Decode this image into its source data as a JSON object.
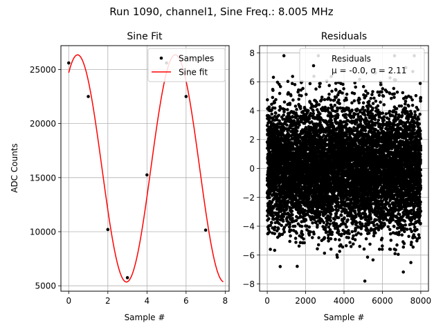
{
  "figure": {
    "suptitle": "Run 1090, channel1, Sine Freq.: 8.005 MHz"
  },
  "chart_data": [
    {
      "type": "line",
      "title": "Sine Fit",
      "xlabel": "Sample #",
      "ylabel": "ADC Counts",
      "xlim": [
        -0.4,
        8.2
      ],
      "ylim": [
        4500,
        27200
      ],
      "xticks": [
        0,
        2,
        4,
        6,
        8
      ],
      "yticks": [
        5000,
        10000,
        15000,
        20000,
        25000
      ],
      "grid": true,
      "legend": {
        "placement": "top-right",
        "entries": [
          "Samples",
          "Sine fit"
        ]
      },
      "series": [
        {
          "name": "Samples",
          "kind": "scatter",
          "color": "#000000",
          "x": [
            0,
            1,
            2,
            3,
            4,
            5,
            6,
            7
          ],
          "y": [
            25600,
            22500,
            10200,
            5750,
            15250,
            25600,
            22500,
            10150
          ]
        },
        {
          "name": "Sine fit",
          "kind": "line",
          "color": "#ff0000",
          "model": {
            "offset": 15850,
            "amplitude": 10500,
            "period": 4.996,
            "phase_shift": 0.4525
          },
          "x_range": [
            0,
            7.9
          ]
        }
      ]
    },
    {
      "type": "scatter",
      "title": "Residuals",
      "xlabel": "Sample #",
      "xlim": [
        -400,
        8400
      ],
      "ylim": [
        -8.5,
        8.5
      ],
      "xticks": [
        0,
        2000,
        4000,
        6000,
        8000
      ],
      "yticks": [
        -8,
        -6,
        -4,
        -2,
        0,
        2,
        4,
        6,
        8
      ],
      "grid": true,
      "legend": {
        "placement": "top-right",
        "entries": [
          "Residuals",
          "μ = -0.0, σ = 2.11"
        ]
      },
      "series": [
        {
          "name": "Residuals",
          "color": "#000000",
          "n_points": 8000,
          "x_range": [
            0,
            7999
          ],
          "mean": 0.0,
          "std": 2.11
        }
      ]
    }
  ]
}
